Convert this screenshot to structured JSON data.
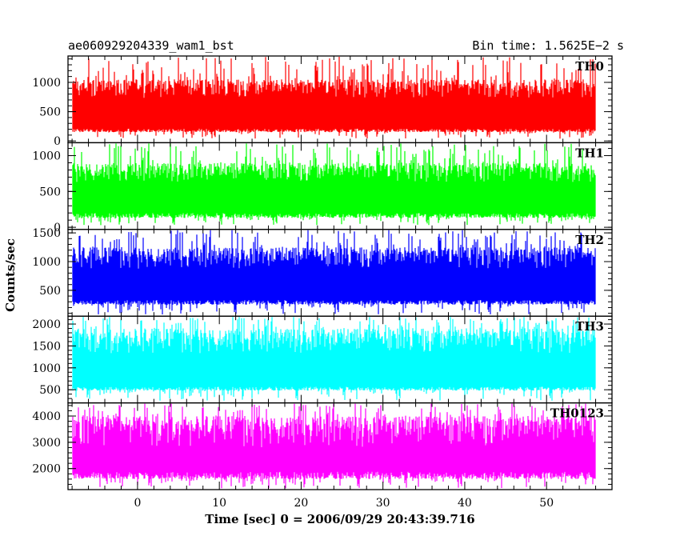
{
  "chart_data": {
    "type": "line",
    "title_left": "ae060929204339_wam1_bst",
    "title_right": "Bin time: 1.5625E−2 s",
    "xlabel": "Time [sec] 0 = 2006/09/29 20:43:39.716",
    "ylabel": "Counts/sec",
    "xlim": [
      -8.5,
      58
    ],
    "data_xrange": [
      -8,
      56
    ],
    "x_ticks": [
      0,
      10,
      20,
      30,
      40,
      50
    ],
    "x_tick_labels": [
      "0",
      "10",
      "20",
      "30",
      "40",
      "50"
    ],
    "grid": false,
    "panels": [
      {
        "name": "TH0",
        "color": "#ff0000",
        "ylim": [
          -30,
          1450
        ],
        "y_ticks": [
          0,
          500,
          1000
        ],
        "y_tick_labels": [
          "0",
          "500",
          "1000"
        ],
        "baseline": 300,
        "typical_low": 150,
        "typical_high": 1050,
        "max": 1450,
        "min": 40
      },
      {
        "name": "TH1",
        "color": "#00ff00",
        "ylim": [
          -30,
          1180
        ],
        "y_ticks": [
          0,
          500,
          1000
        ],
        "y_tick_labels": [
          "0",
          "500",
          "1000"
        ],
        "baseline": 300,
        "typical_low": 130,
        "typical_high": 900,
        "max": 1180,
        "min": 30
      },
      {
        "name": "TH2",
        "color": "#0000ff",
        "ylim": [
          50,
          1560
        ],
        "y_ticks": [
          500,
          1000,
          1500
        ],
        "y_tick_labels": [
          "500",
          "1000",
          "1500"
        ],
        "baseline": 450,
        "typical_low": 250,
        "typical_high": 1250,
        "max": 1560,
        "min": 80
      },
      {
        "name": "TH3",
        "color": "#00ffff",
        "ylim": [
          200,
          2180
        ],
        "y_ticks": [
          500,
          1000,
          1500,
          2000
        ],
        "y_tick_labels": [
          "500",
          "1000",
          "1500",
          "2000"
        ],
        "baseline": 700,
        "typical_low": 480,
        "typical_high": 1900,
        "max": 2180,
        "min": 250
      },
      {
        "name": "TH0123",
        "color": "#ff00ff",
        "ylim": [
          1200,
          4500
        ],
        "y_ticks": [
          2000,
          3000,
          4000
        ],
        "y_tick_labels": [
          "2000",
          "3000",
          "4000"
        ],
        "baseline": 2300,
        "typical_low": 1600,
        "typical_high": 4000,
        "max": 4500,
        "min": 1250
      }
    ]
  }
}
